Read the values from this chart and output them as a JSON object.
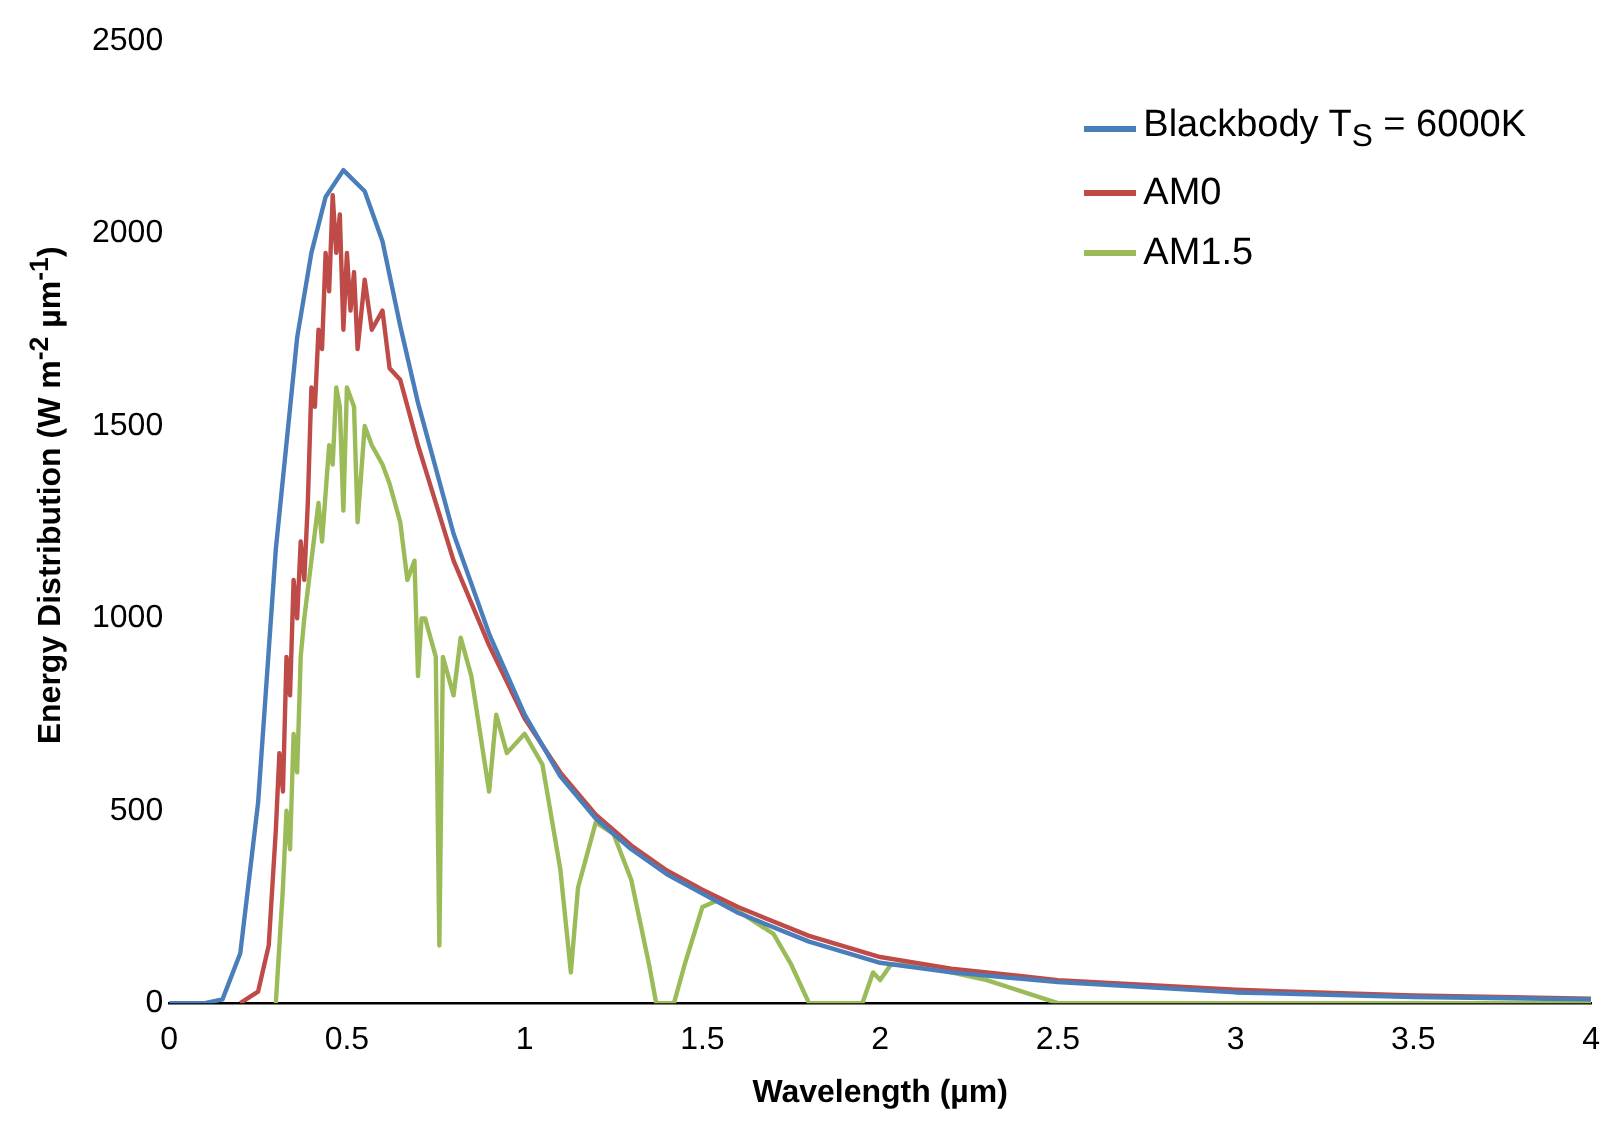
{
  "chart_data": {
    "type": "line",
    "xlabel": "Wavelength (µm)",
    "ylabel": "Energy  Distribution (W m$^{-2}$ µm$^{-1}$)",
    "xlim": [
      0,
      4
    ],
    "xticks": [
      0,
      0.5,
      1,
      1.5,
      2,
      2.5,
      3,
      3.5,
      4
    ],
    "ylim": [
      0,
      2500
    ],
    "yticks": [
      0,
      500,
      1000,
      1500,
      2000,
      2500
    ],
    "grid": false,
    "legend": "top right",
    "marker": "none",
    "line_style": "solid",
    "series": [
      {
        "name": "Blackbody T$_{S}$ = 6000K",
        "color": "#4a7ebb",
        "x": [
          0,
          0.1,
          0.15,
          0.2,
          0.25,
          0.3,
          0.36,
          0.4,
          0.44,
          0.49,
          0.55,
          0.6,
          0.65,
          0.7,
          0.8,
          0.9,
          1.0,
          1.1,
          1.2,
          1.3,
          1.4,
          1.5,
          1.6,
          1.8,
          2.0,
          2.2,
          2.5,
          3.0,
          3.5,
          4.0
        ],
        "values": [
          0,
          0,
          10,
          130,
          520,
          1180,
          1730,
          1950,
          2095,
          2165,
          2110,
          1980,
          1760,
          1560,
          1220,
          960,
          750,
          590,
          480,
          400,
          335,
          285,
          235,
          160,
          105,
          80,
          55,
          28,
          16,
          10
        ]
      },
      {
        "name": "AM0",
        "color": "#be4b48",
        "x": [
          0.2,
          0.25,
          0.28,
          0.3,
          0.31,
          0.32,
          0.33,
          0.34,
          0.35,
          0.36,
          0.37,
          0.38,
          0.39,
          0.4,
          0.41,
          0.42,
          0.43,
          0.44,
          0.45,
          0.46,
          0.47,
          0.48,
          0.49,
          0.5,
          0.51,
          0.52,
          0.53,
          0.55,
          0.57,
          0.6,
          0.62,
          0.65,
          0.7,
          0.75,
          0.8,
          0.9,
          1.0,
          1.1,
          1.2,
          1.3,
          1.4,
          1.5,
          1.6,
          1.8,
          2.0,
          2.2,
          2.5,
          3.0,
          3.5,
          4.0
        ],
        "values": [
          0,
          30,
          150,
          450,
          650,
          550,
          900,
          800,
          1100,
          1000,
          1200,
          1100,
          1300,
          1600,
          1550,
          1750,
          1700,
          1950,
          1850,
          2100,
          1950,
          2050,
          1750,
          1950,
          1800,
          1900,
          1700,
          1880,
          1750,
          1800,
          1650,
          1620,
          1450,
          1300,
          1150,
          930,
          740,
          600,
          490,
          410,
          345,
          295,
          250,
          175,
          120,
          90,
          60,
          35,
          20,
          12
        ]
      },
      {
        "name": "AM1.5",
        "color": "#9bbb59",
        "x": [
          0.3,
          0.32,
          0.33,
          0.34,
          0.35,
          0.36,
          0.37,
          0.38,
          0.4,
          0.42,
          0.43,
          0.45,
          0.46,
          0.47,
          0.48,
          0.49,
          0.5,
          0.52,
          0.53,
          0.55,
          0.57,
          0.6,
          0.62,
          0.65,
          0.67,
          0.69,
          0.7,
          0.71,
          0.72,
          0.75,
          0.76,
          0.77,
          0.8,
          0.82,
          0.85,
          0.9,
          0.92,
          0.95,
          1.0,
          1.05,
          1.1,
          1.13,
          1.15,
          1.2,
          1.25,
          1.3,
          1.35,
          1.37,
          1.42,
          1.45,
          1.5,
          1.55,
          1.6,
          1.7,
          1.75,
          1.8,
          1.95,
          1.98,
          2.0,
          2.03,
          2.1,
          2.2,
          2.3,
          2.4,
          2.5,
          4.0
        ],
        "values": [
          0,
          300,
          500,
          400,
          700,
          600,
          900,
          1000,
          1150,
          1300,
          1200,
          1450,
          1400,
          1600,
          1550,
          1280,
          1600,
          1550,
          1250,
          1500,
          1450,
          1400,
          1350,
          1250,
          1100,
          1150,
          850,
          1000,
          1000,
          900,
          150,
          900,
          800,
          950,
          850,
          550,
          750,
          650,
          700,
          620,
          350,
          80,
          300,
          470,
          440,
          320,
          100,
          0,
          0,
          100,
          250,
          270,
          240,
          180,
          100,
          0,
          0,
          80,
          60,
          100,
          100,
          80,
          60,
          30,
          0,
          0
        ]
      }
    ]
  }
}
